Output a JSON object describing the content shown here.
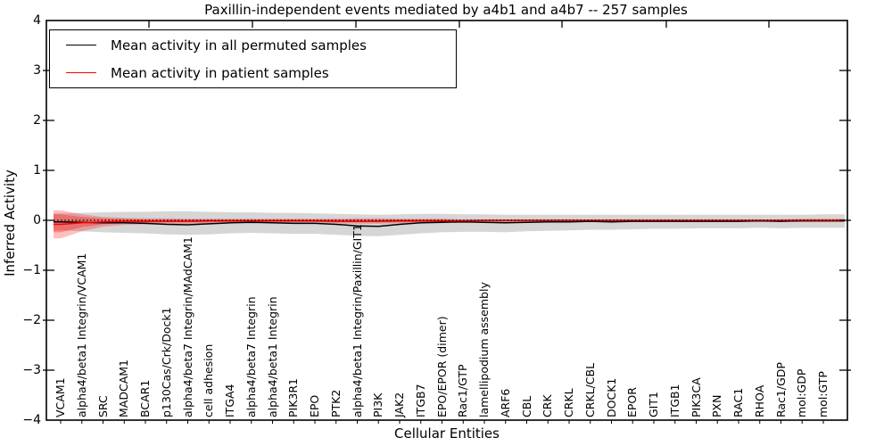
{
  "title": "Paxillin-independent events mediated by a4b1 and a4b7 -- 257 samples",
  "legend": {
    "items": [
      {
        "label": "Mean activity in all permuted samples",
        "color": "#000000"
      },
      {
        "label": "Mean activity in patient samples",
        "color": "#ff0000"
      }
    ]
  },
  "axes": {
    "xlabel": "Cellular Entities",
    "ylabel": "Inferred Activity",
    "yticks": [
      "4",
      "3",
      "2",
      "1",
      "0",
      "−1",
      "−2",
      "−3",
      "−4"
    ],
    "ylim": [
      -4,
      4
    ]
  },
  "colors": {
    "permuted_line": "#000000",
    "patient_line": "#ff0000",
    "permuted_band": "#000000",
    "patient_band": "#ff0000",
    "frame": "#000000",
    "background": "#ffffff"
  },
  "chart_data": {
    "type": "line",
    "title": "Paxillin-independent events mediated by a4b1 and a4b7 -- 257 samples",
    "xlabel": "Cellular Entities",
    "ylabel": "Inferred Activity",
    "ylim": [
      -4,
      4
    ],
    "grid": false,
    "legend_position": "upper left",
    "categories": [
      "VCAM1",
      "alpha4/beta1 Integrin/VCAM1",
      "SRC",
      "MADCAM1",
      "BCAR1",
      "p130Cas/Crk/Dock1",
      "alpha4/beta7 Integrin/MAdCAM1",
      "cell adhesion",
      "ITGA4",
      "alpha4/beta7 Integrin",
      "alpha4/beta1 Integrin",
      "PIK3R1",
      "EPO",
      "PTK2",
      "alpha4/beta1 Integrin/Paxillin/GIT1",
      "PI3K",
      "JAK2",
      "ITGB7",
      "EPO/EPOR (dimer)",
      "Rac1/GTP",
      "lamellipodium assembly",
      "ARF6",
      "CBL",
      "CRK",
      "CRKL",
      "CRKL/CBL",
      "DOCK1",
      "EPOR",
      "GIT1",
      "ITGB1",
      "PIK3CA",
      "PXN",
      "RAC1",
      "RHOA",
      "Rac1/GDP",
      "mol:GDP",
      "mol:GTP"
    ],
    "series": [
      {
        "name": "Mean activity in all permuted samples",
        "color": "#000000",
        "values": [
          -0.03,
          -0.04,
          -0.05,
          -0.05,
          -0.06,
          -0.08,
          -0.09,
          -0.07,
          -0.05,
          -0.04,
          -0.05,
          -0.06,
          -0.06,
          -0.08,
          -0.11,
          -0.12,
          -0.08,
          -0.05,
          -0.04,
          -0.03,
          -0.04,
          -0.05,
          -0.04,
          -0.03,
          -0.03,
          -0.02,
          -0.03,
          -0.02,
          -0.02,
          -0.02,
          -0.02,
          -0.02,
          -0.02,
          -0.01,
          -0.02,
          -0.01,
          -0.01
        ]
      },
      {
        "name": "Mean activity in patient samples",
        "color": "#ff0000",
        "values": [
          -0.08,
          -0.05,
          -0.03,
          -0.02,
          -0.02,
          -0.02,
          -0.02,
          -0.01,
          -0.01,
          -0.01,
          -0.01,
          -0.01,
          -0.01,
          -0.02,
          -0.02,
          -0.02,
          -0.01,
          -0.01,
          -0.01,
          -0.01,
          0,
          0,
          0,
          0,
          0,
          0,
          0,
          0,
          0,
          0,
          0,
          0,
          0,
          0,
          0,
          0,
          0
        ]
      }
    ],
    "bands": [
      {
        "name": "permuted-sample-range",
        "color": "#000000",
        "opacity": 0.16,
        "upper": [
          0.14,
          0.15,
          0.16,
          0.17,
          0.17,
          0.18,
          0.18,
          0.17,
          0.16,
          0.16,
          0.15,
          0.15,
          0.14,
          0.13,
          0.12,
          0.11,
          0.12,
          0.13,
          0.13,
          0.12,
          0.12,
          0.11,
          0.11,
          0.11,
          0.11,
          0.11,
          0.11,
          0.11,
          0.11,
          0.11,
          0.11,
          0.11,
          0.11,
          0.11,
          0.11,
          0.11,
          0.12
        ],
        "lower": [
          -0.2,
          -0.22,
          -0.24,
          -0.25,
          -0.26,
          -0.28,
          -0.29,
          -0.28,
          -0.26,
          -0.25,
          -0.26,
          -0.27,
          -0.27,
          -0.29,
          -0.31,
          -0.32,
          -0.29,
          -0.26,
          -0.24,
          -0.23,
          -0.23,
          -0.24,
          -0.22,
          -0.21,
          -0.2,
          -0.19,
          -0.19,
          -0.18,
          -0.17,
          -0.17,
          -0.16,
          -0.16,
          -0.16,
          -0.15,
          -0.16,
          -0.15,
          -0.15
        ]
      },
      {
        "name": "patient-sample-range-outer",
        "color": "#ff0000",
        "opacity": 0.25,
        "upper": [
          0.2,
          0.12,
          0.07,
          0.05,
          0.04,
          0.04,
          0.03,
          0.03,
          0.03,
          0.03,
          0.03,
          0.03,
          0.03,
          0.03,
          0.04,
          0.04,
          0.03,
          0.03,
          0.03,
          0.02,
          0.02,
          0.02,
          0.02,
          0.02,
          0.02,
          0.02,
          0.02,
          0.02,
          0.02,
          0.02,
          0.02,
          0.02,
          0.02,
          0.02,
          0.02,
          0.03,
          0.03
        ],
        "lower": [
          -0.36,
          -0.22,
          -0.13,
          -0.09,
          -0.08,
          -0.07,
          -0.07,
          -0.06,
          -0.05,
          -0.05,
          -0.05,
          -0.05,
          -0.05,
          -0.06,
          -0.07,
          -0.07,
          -0.06,
          -0.05,
          -0.04,
          -0.04,
          -0.04,
          -0.04,
          -0.03,
          -0.03,
          -0.03,
          -0.03,
          -0.03,
          -0.03,
          -0.03,
          -0.03,
          -0.03,
          -0.03,
          -0.02,
          -0.02,
          -0.02,
          -0.03,
          -0.03
        ]
      },
      {
        "name": "patient-sample-range-inner",
        "color": "#ff0000",
        "opacity": 0.3,
        "upper": [
          0.12,
          0.07,
          0.04,
          0.03,
          0.02,
          0.02,
          0.02,
          0.02,
          0.02,
          0.02,
          0.02,
          0.02,
          0.02,
          0.02,
          0.02,
          0.02,
          0.02,
          0.02,
          0.02,
          0.01,
          0.01,
          0.01,
          0.01,
          0.01,
          0.01,
          0.01,
          0.01,
          0.01,
          0.01,
          0.01,
          0.01,
          0.01,
          0.01,
          0.01,
          0.01,
          0.02,
          0.02
        ],
        "lower": [
          -0.24,
          -0.14,
          -0.08,
          -0.06,
          -0.05,
          -0.04,
          -0.04,
          -0.04,
          -0.03,
          -0.03,
          -0.03,
          -0.03,
          -0.03,
          -0.04,
          -0.04,
          -0.04,
          -0.04,
          -0.03,
          -0.03,
          -0.02,
          -0.02,
          -0.02,
          -0.02,
          -0.02,
          -0.02,
          -0.02,
          -0.02,
          -0.02,
          -0.02,
          -0.02,
          -0.02,
          -0.02,
          -0.01,
          -0.01,
          -0.01,
          -0.02,
          -0.02
        ]
      }
    ],
    "zero_line": {
      "y": 0,
      "style": "dotted",
      "color": "#000000"
    }
  }
}
